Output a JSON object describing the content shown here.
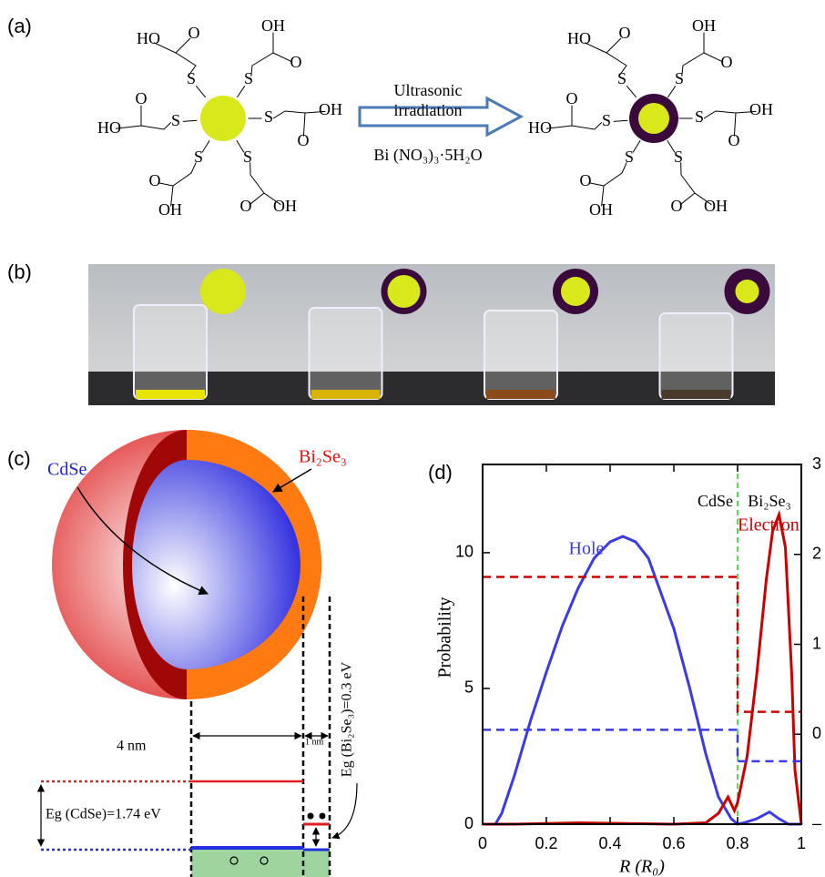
{
  "panel_a": {
    "label": "(a)",
    "sulfur": "S",
    "oxygen": "O",
    "hydroxyl": "OH",
    "hydroxyl_left": "HO",
    "arrow_top": "Ultrasonic",
    "arrow_middle": "irradiation",
    "reagent": "Bi (NO₃)₃·5H₂O"
  },
  "panel_b": {
    "label": "(b)"
  },
  "panel_c": {
    "label": "(c)",
    "core": "CdSe",
    "shell": "Bi₂Se₃",
    "core_width": "4 nm",
    "shell_width": "1 nm",
    "core_gap": "Eg (CdSe)=1.74 eV",
    "shell_gap": "Eg (Bi₂Se₃)=0.3 eV"
  },
  "chart_data": {
    "type": "line",
    "label": "(d)",
    "x_label": "R (R₀)",
    "y_label": "Probability",
    "xlim": [
      0,
      1
    ],
    "xticks": [
      0,
      0.2,
      0.4,
      0.6,
      0.8,
      1
    ],
    "ylim": [
      0,
      13.25
    ],
    "yticks": [
      0,
      5,
      10
    ],
    "y2lim": [
      -1,
      3
    ],
    "y2ticks": [
      {
        "value": -1,
        "label": "–"
      },
      0,
      1,
      2,
      3
    ],
    "interface_x": 0.8,
    "interface_color": "#22cc22",
    "annotations": [
      "CdSe",
      "Bi₂Se₃"
    ],
    "series": [
      {
        "name": "Hole",
        "color": "#3a3ae8",
        "x": [
          0,
          0.04,
          0.06,
          0.1,
          0.15,
          0.2,
          0.25,
          0.3,
          0.35,
          0.4,
          0.44,
          0.48,
          0.52,
          0.56,
          0.6,
          0.65,
          0.7,
          0.74,
          0.78,
          0.8,
          0.82,
          0.86,
          0.9,
          0.93,
          0.96,
          1
        ],
        "values": [
          0,
          0,
          0.4,
          1.8,
          3.8,
          5.6,
          7.3,
          8.7,
          9.8,
          10.4,
          10.6,
          10.4,
          9.8,
          8.5,
          7.2,
          5.0,
          2.6,
          1.0,
          0.2,
          0,
          0.05,
          0.2,
          0.45,
          0.2,
          0,
          0
        ]
      },
      {
        "name": "Electron",
        "color": "#cc0000",
        "x": [
          0,
          0.1,
          0.3,
          0.6,
          0.7,
          0.74,
          0.77,
          0.79,
          0.8,
          0.83,
          0.86,
          0.89,
          0.91,
          0.93,
          0.95,
          0.97,
          0.98,
          1
        ],
        "values": [
          0,
          0,
          0.05,
          0,
          0.05,
          0.4,
          1.0,
          0.5,
          0.8,
          2.5,
          5.5,
          9.0,
          10.8,
          11.4,
          10.2,
          5.5,
          2.0,
          0
        ]
      },
      {
        "color": "#cc0000",
        "axis": "y2",
        "dashed": true,
        "x": [
          0,
          0.8,
          0.8,
          1
        ],
        "values": [
          1.75,
          1.75,
          0.25,
          0.25
        ]
      },
      {
        "color": "#3a3ae8",
        "axis": "y2",
        "dashed": true,
        "x": [
          0,
          0.8,
          0.8,
          1
        ],
        "values": [
          0.05,
          0.05,
          -0.3,
          -0.3
        ]
      }
    ]
  }
}
